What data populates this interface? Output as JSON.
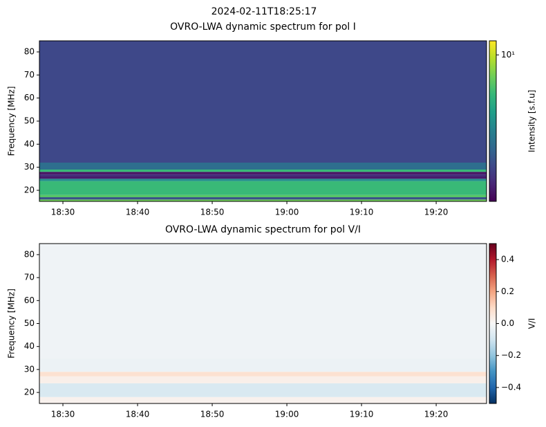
{
  "title": "2024-02-11T18:25:17",
  "chart_data": [
    {
      "type": "heatmap",
      "title": "OVRO-LWA dynamic spectrum for pol I",
      "y_label": "Frequency [MHz]",
      "colorbar_label": "Intensity [s.f.u]",
      "colormap": "viridis",
      "color_scale": "log",
      "y_edges": [
        15.2,
        16,
        17,
        18,
        24,
        25,
        26,
        27,
        28,
        29,
        32,
        84.8
      ],
      "values": [
        6,
        0.8,
        5,
        4,
        2,
        0.4,
        0.5,
        0.35,
        4,
        1.2,
        0.7
      ],
      "xlim": [
        1106.85,
        1166.75
      ],
      "xticks": [
        {
          "value": 1110,
          "label": "18:30"
        },
        {
          "value": 1120,
          "label": "18:40"
        },
        {
          "value": 1130,
          "label": "18:50"
        },
        {
          "value": 1140,
          "label": "19:00"
        },
        {
          "value": 1150,
          "label": "19:10"
        },
        {
          "value": 1160,
          "label": "19:20"
        }
      ],
      "ylim": [
        15.2,
        84.8
      ],
      "yticks": [
        20,
        30,
        40,
        50,
        60,
        70,
        80
      ],
      "clim": [
        0.3,
        14
      ],
      "cticks": [
        {
          "value": 10,
          "label": "10¹"
        }
      ]
    },
    {
      "type": "heatmap",
      "title": "OVRO-LWA dynamic spectrum for pol V/I",
      "y_label": "Frequency [MHz]",
      "colorbar_label": "V/I",
      "colormap": "RdBu_r",
      "color_scale": "linear",
      "y_edges": [
        15.2,
        18,
        24,
        27,
        29,
        35,
        84.8
      ],
      "values": [
        0.02,
        -0.08,
        0.03,
        0.08,
        -0.03,
        -0.02
      ],
      "xlim": [
        1106.85,
        1166.75
      ],
      "xticks": [
        {
          "value": 1110,
          "label": "18:30"
        },
        {
          "value": 1120,
          "label": "18:40"
        },
        {
          "value": 1130,
          "label": "18:50"
        },
        {
          "value": 1140,
          "label": "19:00"
        },
        {
          "value": 1150,
          "label": "19:10"
        },
        {
          "value": 1160,
          "label": "19:20"
        }
      ],
      "ylim": [
        15.2,
        84.8
      ],
      "yticks": [
        20,
        30,
        40,
        50,
        60,
        70,
        80
      ],
      "clim": [
        -0.5,
        0.5
      ],
      "cticks": [
        {
          "value": -0.4,
          "label": "−0.4"
        },
        {
          "value": -0.2,
          "label": "−0.2"
        },
        {
          "value": 0,
          "label": "0.0"
        },
        {
          "value": 0.2,
          "label": "0.2"
        },
        {
          "value": 0.4,
          "label": "0.4"
        }
      ]
    }
  ]
}
